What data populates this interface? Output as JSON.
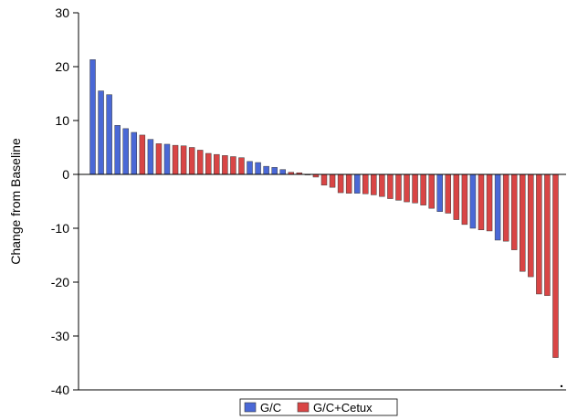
{
  "chart_data": {
    "type": "bar",
    "title": "",
    "xlabel": "",
    "ylabel": "Change from Baseline",
    "ylim": [
      -40,
      30
    ],
    "yticks": [
      30,
      20,
      10,
      0,
      -10,
      -20,
      -30,
      -40
    ],
    "grid": false,
    "legend_position": "bottom-center",
    "series_colors": {
      "G/C": "#4a68d6",
      "G/C+Cetux": "#d94545"
    },
    "legend": [
      {
        "name": "G/C",
        "color": "#4a68d6"
      },
      {
        "name": "G/C+Cetux",
        "color": "#d94545"
      }
    ],
    "bars": [
      {
        "group": "G/C",
        "value": 21.3
      },
      {
        "group": "G/C",
        "value": 15.5
      },
      {
        "group": "G/C",
        "value": 14.8
      },
      {
        "group": "G/C",
        "value": 9.1
      },
      {
        "group": "G/C",
        "value": 8.5
      },
      {
        "group": "G/C",
        "value": 7.8
      },
      {
        "group": "G/C+Cetux",
        "value": 7.3
      },
      {
        "group": "G/C",
        "value": 6.5
      },
      {
        "group": "G/C+Cetux",
        "value": 5.7
      },
      {
        "group": "G/C",
        "value": 5.6
      },
      {
        "group": "G/C+Cetux",
        "value": 5.4
      },
      {
        "group": "G/C+Cetux",
        "value": 5.3
      },
      {
        "group": "G/C+Cetux",
        "value": 5.0
      },
      {
        "group": "G/C+Cetux",
        "value": 4.5
      },
      {
        "group": "G/C+Cetux",
        "value": 3.9
      },
      {
        "group": "G/C+Cetux",
        "value": 3.7
      },
      {
        "group": "G/C+Cetux",
        "value": 3.5
      },
      {
        "group": "G/C+Cetux",
        "value": 3.3
      },
      {
        "group": "G/C+Cetux",
        "value": 3.1
      },
      {
        "group": "G/C",
        "value": 2.4
      },
      {
        "group": "G/C",
        "value": 2.2
      },
      {
        "group": "G/C",
        "value": 1.5
      },
      {
        "group": "G/C",
        "value": 1.3
      },
      {
        "group": "G/C",
        "value": 0.9
      },
      {
        "group": "G/C+Cetux",
        "value": 0.4
      },
      {
        "group": "G/C+Cetux",
        "value": 0.3
      },
      {
        "group": "G/C+Cetux",
        "value": 0.0
      },
      {
        "group": "G/C+Cetux",
        "value": -0.5
      },
      {
        "group": "G/C+Cetux",
        "value": -2.0
      },
      {
        "group": "G/C+Cetux",
        "value": -2.4
      },
      {
        "group": "G/C+Cetux",
        "value": -3.4
      },
      {
        "group": "G/C+Cetux",
        "value": -3.5
      },
      {
        "group": "G/C",
        "value": -3.5
      },
      {
        "group": "G/C+Cetux",
        "value": -3.6
      },
      {
        "group": "G/C+Cetux",
        "value": -3.8
      },
      {
        "group": "G/C+Cetux",
        "value": -4.1
      },
      {
        "group": "G/C+Cetux",
        "value": -4.5
      },
      {
        "group": "G/C+Cetux",
        "value": -4.8
      },
      {
        "group": "G/C+Cetux",
        "value": -5.1
      },
      {
        "group": "G/C+Cetux",
        "value": -5.3
      },
      {
        "group": "G/C+Cetux",
        "value": -5.7
      },
      {
        "group": "G/C+Cetux",
        "value": -6.3
      },
      {
        "group": "G/C",
        "value": -6.9
      },
      {
        "group": "G/C+Cetux",
        "value": -7.2
      },
      {
        "group": "G/C+Cetux",
        "value": -8.4
      },
      {
        "group": "G/C+Cetux",
        "value": -9.3
      },
      {
        "group": "G/C",
        "value": -10.0
      },
      {
        "group": "G/C+Cetux",
        "value": -10.3
      },
      {
        "group": "G/C+Cetux",
        "value": -10.5
      },
      {
        "group": "G/C",
        "value": -12.2
      },
      {
        "group": "G/C+Cetux",
        "value": -12.4
      },
      {
        "group": "G/C+Cetux",
        "value": -14.0
      },
      {
        "group": "G/C+Cetux",
        "value": -18.0
      },
      {
        "group": "G/C+Cetux",
        "value": -19.0
      },
      {
        "group": "G/C+Cetux",
        "value": -22.2
      },
      {
        "group": "G/C+Cetux",
        "value": -22.5
      },
      {
        "group": "G/C+Cetux",
        "value": -34.0
      }
    ]
  }
}
